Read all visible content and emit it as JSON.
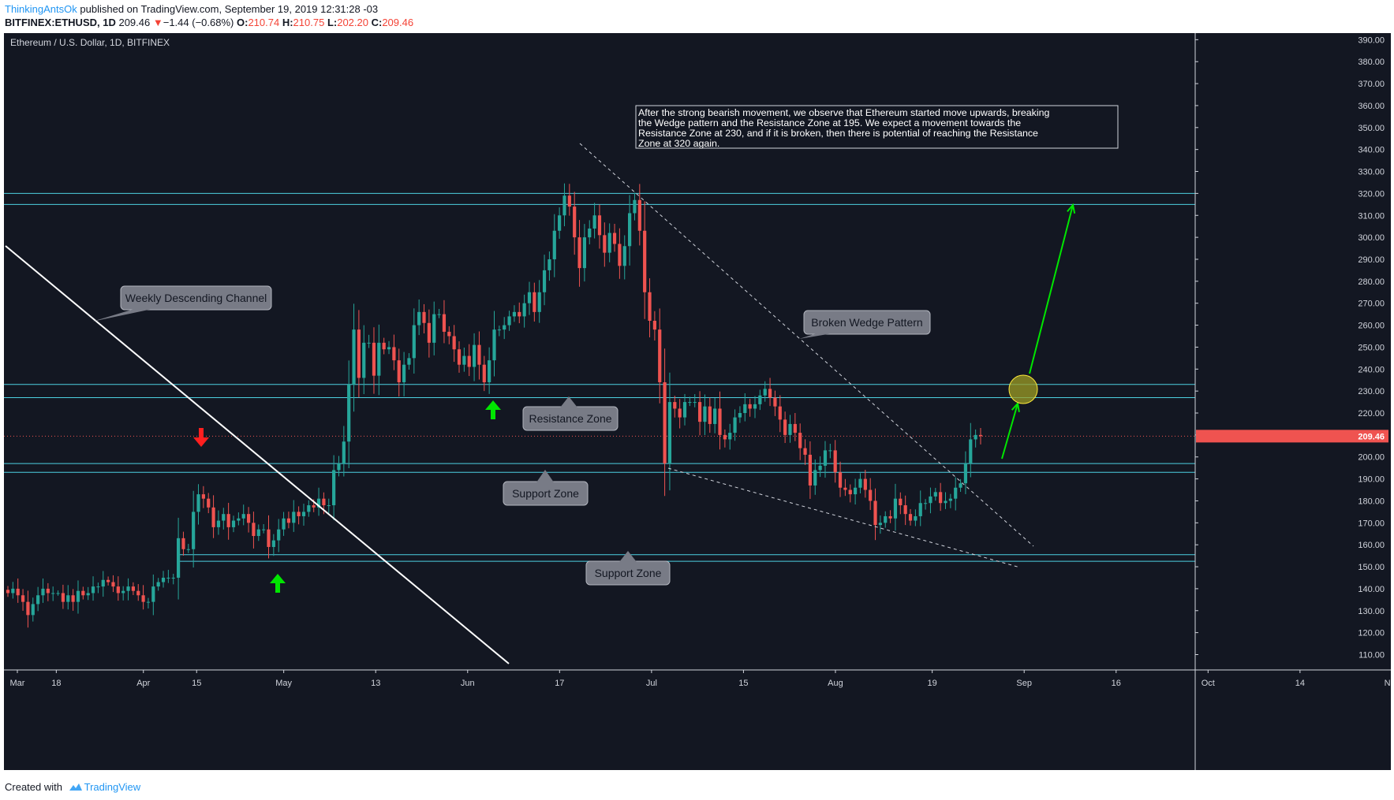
{
  "header": {
    "author": "ThinkingAntsOk",
    "published": "published on TradingView.com, September 19, 2019 12:31:28 -03",
    "symbol": "BITFINEX:ETHUSD, 1D",
    "last": "209.46",
    "change_arrow": "▼",
    "change": "−1.44 (−0.68%)",
    "o_label": "O:",
    "o": "210.74",
    "h_label": "H:",
    "h": "210.75",
    "l_label": "L:",
    "l": "202.20",
    "c_label": "C:",
    "c": "209.46"
  },
  "footer": {
    "created": "Created with",
    "brand": "TradingView"
  },
  "colors": {
    "background": "#131722",
    "up": "#26a69a",
    "down": "#ef5350",
    "zone": "#4dd0e1",
    "green_arrow": "#00e600",
    "red_arrow": "#ff1f1f",
    "price_tag": "#ef5350"
  },
  "chart_data": {
    "type": "candlestick",
    "title": "Ethereum / U.S. Dollar, 1D, BITFINEX",
    "y_ticks": [
      "390.00",
      "380.00",
      "370.00",
      "360.00",
      "350.00",
      "340.00",
      "330.00",
      "320.00",
      "310.00",
      "300.00",
      "290.00",
      "280.00",
      "270.00",
      "260.00",
      "250.00",
      "240.00",
      "230.00",
      "220.00",
      "210.00",
      "200.00",
      "190.00",
      "180.00",
      "170.00",
      "160.00",
      "150.00",
      "140.00",
      "130.00",
      "120.00",
      "110.00"
    ],
    "x_ticks": [
      "Mar",
      "18",
      "Apr",
      "15",
      "May",
      "13",
      "Jun",
      "17",
      "Jul",
      "15",
      "Aug",
      "19",
      "Sep",
      "16",
      "Oct",
      "14",
      "Nov"
    ],
    "ylim": [
      103,
      393
    ],
    "last_price": "209.46",
    "zones": [
      {
        "name": "Resistance 320",
        "low": 315,
        "high": 320
      },
      {
        "name": "Resistance 230",
        "low": 227,
        "high": 233
      },
      {
        "name": "Support 195",
        "low": 193,
        "high": 197
      },
      {
        "name": "Support 155",
        "low": 152.5,
        "high": 155.5
      }
    ],
    "closes": [
      138,
      140,
      137,
      134,
      128,
      133,
      137,
      140,
      138,
      138,
      138,
      134,
      137,
      134,
      139,
      137,
      138,
      141,
      141,
      144,
      143,
      141,
      138,
      139,
      141,
      139,
      137,
      134,
      134,
      141,
      143,
      145,
      145,
      145,
      163,
      158,
      158,
      175,
      183,
      181,
      177,
      168,
      171,
      174,
      168,
      171,
      172,
      174,
      170,
      164,
      167,
      167,
      159,
      162,
      167,
      172,
      170,
      175,
      173,
      175,
      178,
      177,
      181,
      178,
      178,
      194,
      197,
      207,
      233,
      258,
      236,
      252,
      252,
      237,
      252,
      249,
      250,
      244,
      234,
      242,
      245,
      260,
      266,
      261,
      252,
      265,
      265,
      257,
      255,
      249,
      242,
      246,
      241,
      251,
      242,
      234,
      244,
      258,
      258,
      260,
      264,
      266,
      264,
      270,
      275,
      266,
      275,
      285,
      290,
      303,
      310,
      319,
      314,
      300,
      286,
      300,
      304,
      310,
      301,
      293,
      302,
      297,
      287,
      296,
      311,
      317,
      303,
      275,
      262,
      258,
      234,
      197,
      225,
      222,
      218,
      225,
      225,
      225,
      216,
      223,
      215,
      222,
      210,
      208,
      211,
      218,
      220,
      224,
      222,
      224,
      228,
      231,
      227,
      223,
      217,
      210,
      215,
      211,
      204,
      201,
      187,
      194,
      196,
      203,
      203,
      193,
      186,
      185,
      183,
      186,
      190,
      185,
      180,
      169,
      170,
      173,
      172,
      181,
      178,
      174,
      171,
      173,
      179,
      179,
      182,
      184,
      179,
      180,
      181,
      186,
      188,
      197,
      208,
      210,
      209.46
    ]
  },
  "annotations": {
    "weekly_channel": "Weekly Descending Channel",
    "broken_wedge": "Broken Wedge Pattern",
    "resistance_zone": "Resistance Zone",
    "support_zone_1": "Support Zone",
    "support_zone_2": "Support Zone",
    "note_lines": [
      "After the strong bearish movement, we observe that Ethereum started move upwards, breaking",
      "the Wedge pattern and the Resistance Zone at 195. We expect a movement towards the",
      "Resistance Zone at 230, and if it is broken, then there is potential of reaching the Resistance",
      "Zone at 320 again."
    ]
  }
}
